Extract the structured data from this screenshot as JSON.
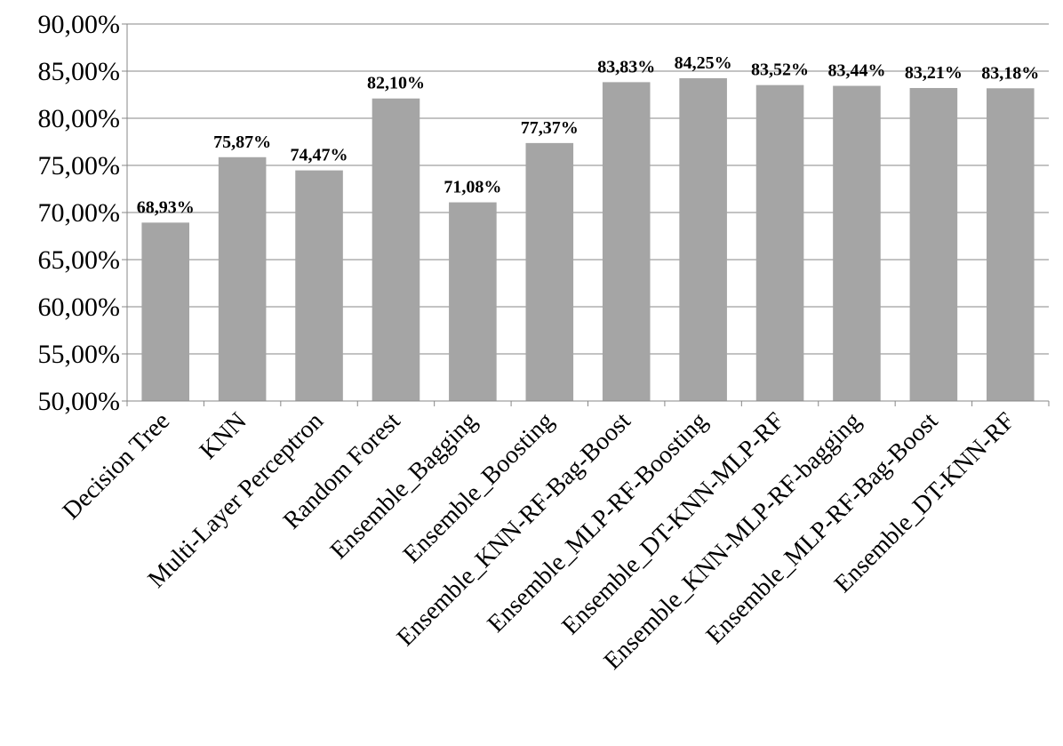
{
  "chart_data": {
    "type": "bar",
    "categories": [
      "Decision Tree",
      "KNN",
      "Multi-Layer Perceptron",
      "Random Forest",
      "Ensemble_Bagging",
      "Ensemble_Boosting",
      "Ensemble_KNN-RF-Bag-Boost",
      "Ensemble_MLP-RF-Boosting",
      "Ensemble_DT-KNN-MLP-RF",
      "Ensemble_KNN-MLP-RF-bagging",
      "Ensemble_MLP-RF-Bag-Boost",
      "Ensemble_DT-KNN-RF"
    ],
    "values": [
      68.93,
      75.87,
      74.47,
      82.1,
      71.08,
      77.37,
      83.83,
      84.25,
      83.52,
      83.44,
      83.21,
      83.18
    ],
    "data_labels": [
      "68,93%",
      "75,87%",
      "74,47%",
      "82,10%",
      "71,08%",
      "77,37%",
      "83,83%",
      "84,25%",
      "83,52%",
      "83,44%",
      "83,21%",
      "83,18%"
    ],
    "y_ticks": [
      50,
      55,
      60,
      65,
      70,
      75,
      80,
      85,
      90
    ],
    "y_tick_labels": [
      "50,00%",
      "55,00%",
      "60,00%",
      "65,00%",
      "70,00%",
      "75,00%",
      "80,00%",
      "85,00%",
      "90,00%"
    ],
    "ylim": [
      50,
      90
    ],
    "title": "",
    "xlabel": "",
    "ylabel": "",
    "grid": true,
    "legend": "none",
    "bar_color": "#a5a5a5",
    "grid_color": "#878787"
  }
}
